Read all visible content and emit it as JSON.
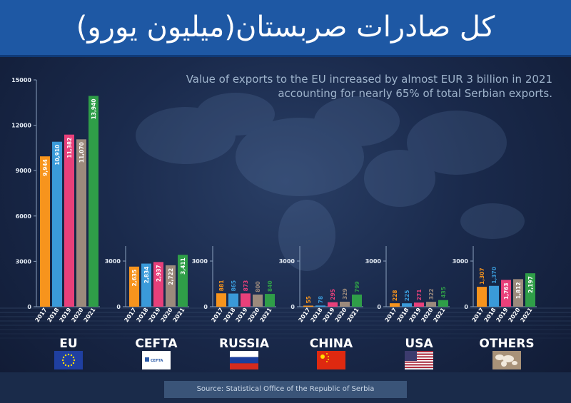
{
  "header": {
    "title": "کل صادرات صربستان(میلیون یورو)"
  },
  "subtitle": "Value of exports to the EU increased by almost EUR 3 billion in 2021 accounting for nearly 65% of total Serbian exports.",
  "source": "Source: Statistical Office of the Republic of Serbia",
  "colors": {
    "2017": "#f7941d",
    "2018": "#3a9ad9",
    "2019": "#e8407a",
    "2020": "#9c8a7c",
    "2021": "#2f9e48"
  },
  "chart_data": {
    "type": "bar",
    "years": [
      "2017",
      "2018",
      "2019",
      "2020",
      "2021"
    ],
    "main_axis": {
      "ylim": [
        0,
        15000
      ],
      "ticks": [
        "0",
        "3000",
        "6000",
        "9000",
        "12000",
        "15000"
      ]
    },
    "small_axis": {
      "ticks": [
        "0",
        "3000"
      ]
    },
    "groups": [
      {
        "name": "EU",
        "flag": "eu-flag-icon",
        "values": [
          9944,
          10910,
          11382,
          11070,
          13940
        ],
        "labels": [
          "9,944",
          "10,910",
          "11,382",
          "11,070",
          "13,940"
        ]
      },
      {
        "name": "CEFTA",
        "flag": "cefta-flag-icon",
        "flag_text": "CEFTA",
        "values": [
          2635,
          2834,
          2937,
          2722,
          3411
        ],
        "labels": [
          "2,635",
          "2,834",
          "2,937",
          "2,722",
          "3,411"
        ]
      },
      {
        "name": "RUSSIA",
        "flag": "russia-flag-icon",
        "values": [
          881,
          865,
          873,
          800,
          840
        ],
        "labels": [
          "881",
          "865",
          "873",
          "800",
          "840"
        ]
      },
      {
        "name": "CHINA",
        "flag": "china-flag-icon",
        "values": [
          55,
          78,
          295,
          329,
          799
        ],
        "labels": [
          "55",
          "78",
          "295",
          "329",
          "799"
        ]
      },
      {
        "name": "USA",
        "flag": "usa-flag-icon",
        "values": [
          228,
          225,
          271,
          322,
          435
        ],
        "labels": [
          "228",
          "225",
          "271",
          "322",
          "435"
        ]
      },
      {
        "name": "OTHERS",
        "flag": "world-map-icon",
        "values": [
          1307,
          1370,
          1763,
          1812,
          2197
        ],
        "labels": [
          "1,307",
          "1,370",
          "1,763",
          "1,812",
          "2,197"
        ]
      }
    ]
  }
}
